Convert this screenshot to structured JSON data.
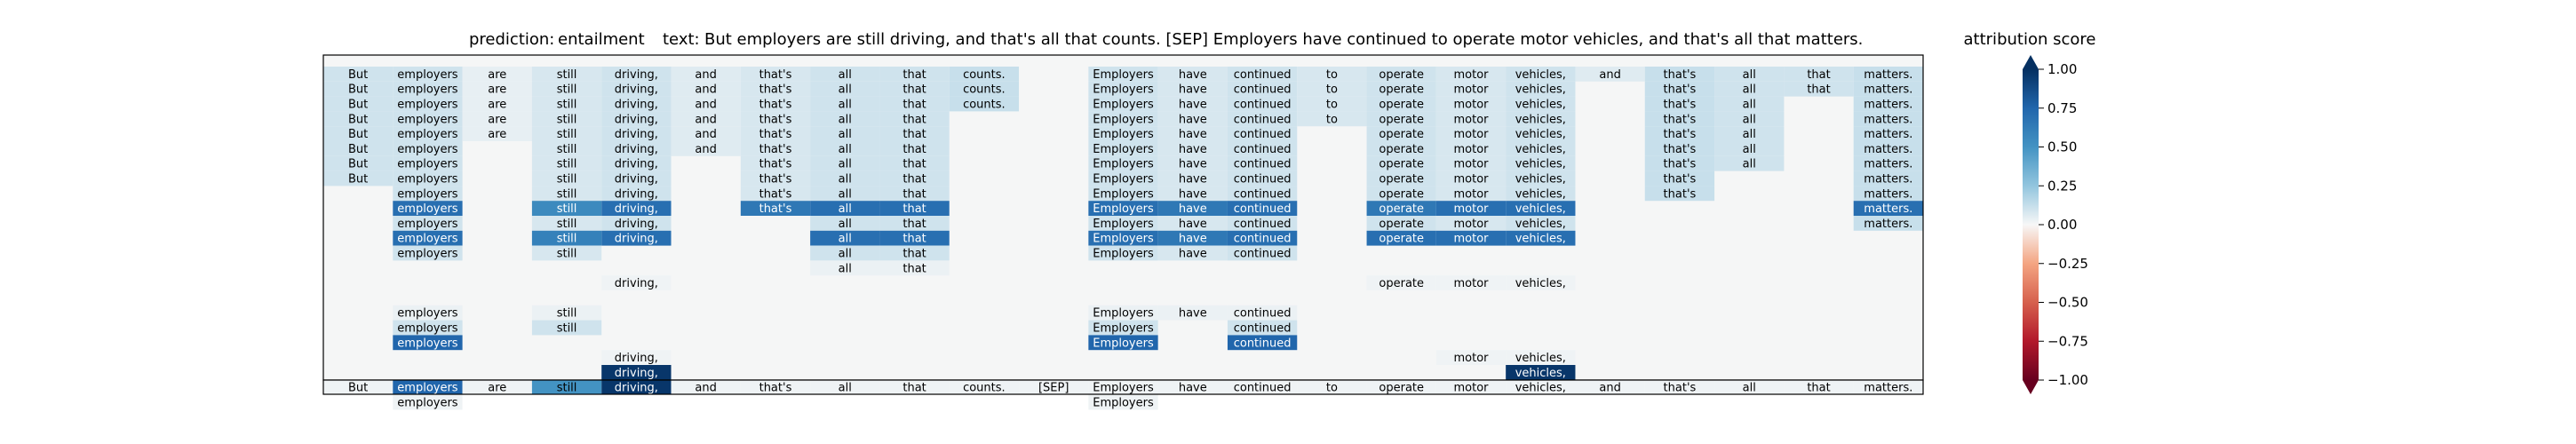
{
  "header": {
    "prediction_label": "prediction:",
    "prediction_value": "entailment",
    "text_label": "text:",
    "text_value": "But employers are still driving, and that's all that counts. [SEP] Employers have continued to operate motor vehicles, and that's all that matters."
  },
  "colorbar": {
    "title": "attribution score",
    "ticks": [
      "1.00",
      "0.75",
      "0.50",
      "0.25",
      "0.00",
      "−0.25",
      "−0.50",
      "−0.75",
      "−1.00"
    ],
    "tick_values": [
      1.0,
      0.75,
      0.5,
      0.25,
      0.0,
      -0.25,
      -0.5,
      -0.75,
      -1.0
    ],
    "cmap": "RdBu",
    "range": [
      -1,
      1
    ]
  },
  "chart_data": {
    "type": "heatmap",
    "tokens": [
      "But",
      "employers",
      "are",
      "still",
      "driving,",
      "and",
      "that's",
      "all",
      "that",
      "counts.",
      "[SEP]",
      "Employers",
      "have",
      "continued",
      "to",
      "operate",
      "motor",
      "vehicles,",
      "and",
      "that's",
      "all",
      "that",
      "matters."
    ],
    "layers": [
      {
        "cells": [
          [
            0,
            0.1
          ],
          [
            1,
            0.1
          ],
          [
            2,
            0.04
          ],
          [
            3,
            0.08
          ],
          [
            4,
            0.1
          ],
          [
            5,
            0.06
          ],
          [
            6,
            0.08
          ],
          [
            7,
            0.1
          ],
          [
            8,
            0.1
          ],
          [
            9,
            0.12
          ],
          [
            11,
            0.1
          ],
          [
            12,
            0.08
          ],
          [
            13,
            0.1
          ],
          [
            14,
            0.08
          ],
          [
            15,
            0.1
          ],
          [
            16,
            0.08
          ],
          [
            17,
            0.1
          ],
          [
            18,
            0.06
          ],
          [
            19,
            0.12
          ],
          [
            20,
            0.1
          ],
          [
            21,
            0.1
          ],
          [
            22,
            0.12
          ]
        ]
      },
      {
        "cells": [
          [
            0,
            0.1
          ],
          [
            1,
            0.1
          ],
          [
            2,
            0.04
          ],
          [
            3,
            0.08
          ],
          [
            4,
            0.1
          ],
          [
            5,
            0.06
          ],
          [
            6,
            0.08
          ],
          [
            7,
            0.1
          ],
          [
            8,
            0.1
          ],
          [
            9,
            0.12
          ],
          [
            11,
            0.1
          ],
          [
            12,
            0.08
          ],
          [
            13,
            0.1
          ],
          [
            14,
            0.08
          ],
          [
            15,
            0.1
          ],
          [
            16,
            0.08
          ],
          [
            17,
            0.1
          ],
          [
            19,
            0.12
          ],
          [
            20,
            0.1
          ],
          [
            21,
            0.1
          ],
          [
            22,
            0.12
          ]
        ]
      },
      {
        "cells": [
          [
            0,
            0.1
          ],
          [
            1,
            0.1
          ],
          [
            2,
            0.04
          ],
          [
            3,
            0.08
          ],
          [
            4,
            0.1
          ],
          [
            5,
            0.06
          ],
          [
            6,
            0.08
          ],
          [
            7,
            0.1
          ],
          [
            8,
            0.1
          ],
          [
            9,
            0.12
          ],
          [
            11,
            0.1
          ],
          [
            12,
            0.08
          ],
          [
            13,
            0.1
          ],
          [
            14,
            0.08
          ],
          [
            15,
            0.1
          ],
          [
            16,
            0.08
          ],
          [
            17,
            0.1
          ],
          [
            19,
            0.12
          ],
          [
            20,
            0.1
          ],
          [
            22,
            0.12
          ]
        ]
      },
      {
        "cells": [
          [
            0,
            0.1
          ],
          [
            1,
            0.1
          ],
          [
            2,
            0.04
          ],
          [
            3,
            0.08
          ],
          [
            4,
            0.1
          ],
          [
            5,
            0.06
          ],
          [
            6,
            0.08
          ],
          [
            7,
            0.1
          ],
          [
            8,
            0.1
          ],
          [
            11,
            0.1
          ],
          [
            12,
            0.08
          ],
          [
            13,
            0.1
          ],
          [
            14,
            0.08
          ],
          [
            15,
            0.1
          ],
          [
            16,
            0.08
          ],
          [
            17,
            0.1
          ],
          [
            19,
            0.12
          ],
          [
            20,
            0.1
          ],
          [
            22,
            0.12
          ]
        ]
      },
      {
        "cells": [
          [
            0,
            0.1
          ],
          [
            1,
            0.1
          ],
          [
            2,
            0.04
          ],
          [
            3,
            0.08
          ],
          [
            4,
            0.1
          ],
          [
            5,
            0.06
          ],
          [
            6,
            0.08
          ],
          [
            7,
            0.1
          ],
          [
            8,
            0.1
          ],
          [
            11,
            0.1
          ],
          [
            12,
            0.08
          ],
          [
            13,
            0.1
          ],
          [
            15,
            0.1
          ],
          [
            16,
            0.08
          ],
          [
            17,
            0.1
          ],
          [
            19,
            0.12
          ],
          [
            20,
            0.1
          ],
          [
            22,
            0.12
          ]
        ]
      },
      {
        "cells": [
          [
            0,
            0.1
          ],
          [
            1,
            0.1
          ],
          [
            3,
            0.08
          ],
          [
            4,
            0.1
          ],
          [
            5,
            0.06
          ],
          [
            6,
            0.08
          ],
          [
            7,
            0.1
          ],
          [
            8,
            0.1
          ],
          [
            11,
            0.1
          ],
          [
            12,
            0.08
          ],
          [
            13,
            0.1
          ],
          [
            15,
            0.1
          ],
          [
            16,
            0.08
          ],
          [
            17,
            0.1
          ],
          [
            19,
            0.12
          ],
          [
            20,
            0.1
          ],
          [
            22,
            0.12
          ]
        ]
      },
      {
        "cells": [
          [
            0,
            0.1
          ],
          [
            1,
            0.1
          ],
          [
            3,
            0.08
          ],
          [
            4,
            0.1
          ],
          [
            6,
            0.08
          ],
          [
            7,
            0.1
          ],
          [
            8,
            0.1
          ],
          [
            11,
            0.1
          ],
          [
            12,
            0.08
          ],
          [
            13,
            0.1
          ],
          [
            15,
            0.1
          ],
          [
            16,
            0.08
          ],
          [
            17,
            0.1
          ],
          [
            19,
            0.12
          ],
          [
            20,
            0.1
          ],
          [
            22,
            0.12
          ]
        ]
      },
      {
        "cells": [
          [
            0,
            0.1
          ],
          [
            1,
            0.1
          ],
          [
            3,
            0.08
          ],
          [
            4,
            0.1
          ],
          [
            6,
            0.08
          ],
          [
            7,
            0.1
          ],
          [
            8,
            0.1
          ],
          [
            11,
            0.1
          ],
          [
            12,
            0.08
          ],
          [
            13,
            0.1
          ],
          [
            15,
            0.1
          ],
          [
            16,
            0.08
          ],
          [
            17,
            0.1
          ],
          [
            19,
            0.12
          ],
          [
            22,
            0.12
          ]
        ]
      },
      {
        "cells": [
          [
            1,
            0.1
          ],
          [
            3,
            0.08
          ],
          [
            4,
            0.1
          ],
          [
            6,
            0.08
          ],
          [
            7,
            0.1
          ],
          [
            8,
            0.1
          ],
          [
            11,
            0.1
          ],
          [
            12,
            0.08
          ],
          [
            13,
            0.1
          ],
          [
            15,
            0.1
          ],
          [
            16,
            0.08
          ],
          [
            17,
            0.1
          ],
          [
            19,
            0.12
          ],
          [
            22,
            0.12
          ]
        ]
      },
      {
        "cells": [
          [
            1,
            0.7
          ],
          [
            3,
            0.55
          ],
          [
            4,
            0.7
          ],
          [
            6,
            0.65
          ],
          [
            7,
            0.7
          ],
          [
            8,
            0.7
          ],
          [
            11,
            0.7
          ],
          [
            12,
            0.65
          ],
          [
            13,
            0.7
          ],
          [
            15,
            0.65
          ],
          [
            16,
            0.7
          ],
          [
            17,
            0.7
          ],
          [
            22,
            0.7
          ]
        ]
      },
      {
        "cells": [
          [
            1,
            0.1
          ],
          [
            3,
            0.08
          ],
          [
            4,
            0.1
          ],
          [
            7,
            0.1
          ],
          [
            8,
            0.1
          ],
          [
            11,
            0.1
          ],
          [
            12,
            0.08
          ],
          [
            13,
            0.1
          ],
          [
            15,
            0.1
          ],
          [
            16,
            0.08
          ],
          [
            17,
            0.1
          ],
          [
            22,
            0.12
          ]
        ]
      },
      {
        "cells": [
          [
            1,
            0.7
          ],
          [
            3,
            0.6
          ],
          [
            4,
            0.7
          ],
          [
            7,
            0.7
          ],
          [
            8,
            0.7
          ],
          [
            11,
            0.7
          ],
          [
            12,
            0.65
          ],
          [
            13,
            0.7
          ],
          [
            15,
            0.7
          ],
          [
            16,
            0.7
          ],
          [
            17,
            0.7
          ]
        ]
      },
      {
        "cells": [
          [
            1,
            0.1
          ],
          [
            3,
            0.08
          ],
          [
            7,
            0.1
          ],
          [
            8,
            0.1
          ],
          [
            11,
            0.1
          ],
          [
            12,
            0.08
          ],
          [
            13,
            0.1
          ]
        ]
      },
      {
        "cells": [
          [
            7,
            0.03
          ],
          [
            8,
            0.03
          ]
        ]
      },
      {
        "cells": [
          [
            4,
            0.02
          ],
          [
            15,
            0.02
          ],
          [
            16,
            0.02
          ],
          [
            17,
            0.02
          ]
        ]
      },
      {
        "cells": []
      },
      {
        "cells": [
          [
            1,
            0.03
          ],
          [
            3,
            0.03
          ],
          [
            11,
            0.03
          ],
          [
            12,
            0.03
          ],
          [
            13,
            0.03
          ]
        ]
      },
      {
        "cells": [
          [
            1,
            0.1
          ],
          [
            3,
            0.1
          ],
          [
            11,
            0.1
          ],
          [
            13,
            0.1
          ]
        ]
      },
      {
        "cells": [
          [
            1,
            0.75
          ],
          [
            11,
            0.75
          ],
          [
            13,
            0.75
          ]
        ]
      },
      {
        "cells": [
          [
            4,
            0.02
          ],
          [
            16,
            0.02
          ],
          [
            17,
            0.02
          ]
        ]
      },
      {
        "cells": [
          [
            4,
            0.97
          ],
          [
            17,
            0.97
          ]
        ]
      },
      {
        "cells": []
      },
      {
        "cells": [
          [
            1,
            0.02
          ],
          [
            11,
            0.02
          ]
        ]
      }
    ],
    "summary": [
      [
        0,
        0.02
      ],
      [
        1,
        0.75
      ],
      [
        2,
        0.02
      ],
      [
        3,
        0.5
      ],
      [
        4,
        0.97
      ],
      [
        5,
        0.02
      ],
      [
        6,
        0.02
      ],
      [
        7,
        0.02
      ],
      [
        8,
        0.02
      ],
      [
        9,
        0.02
      ],
      [
        10,
        0.02
      ],
      [
        11,
        0.02
      ],
      [
        12,
        0.02
      ],
      [
        13,
        0.02
      ],
      [
        14,
        0.02
      ],
      [
        15,
        0.02
      ],
      [
        16,
        0.02
      ],
      [
        17,
        0.02
      ],
      [
        18,
        0.02
      ],
      [
        19,
        0.02
      ],
      [
        20,
        0.02
      ],
      [
        21,
        0.02
      ],
      [
        22,
        0.02
      ]
    ]
  }
}
